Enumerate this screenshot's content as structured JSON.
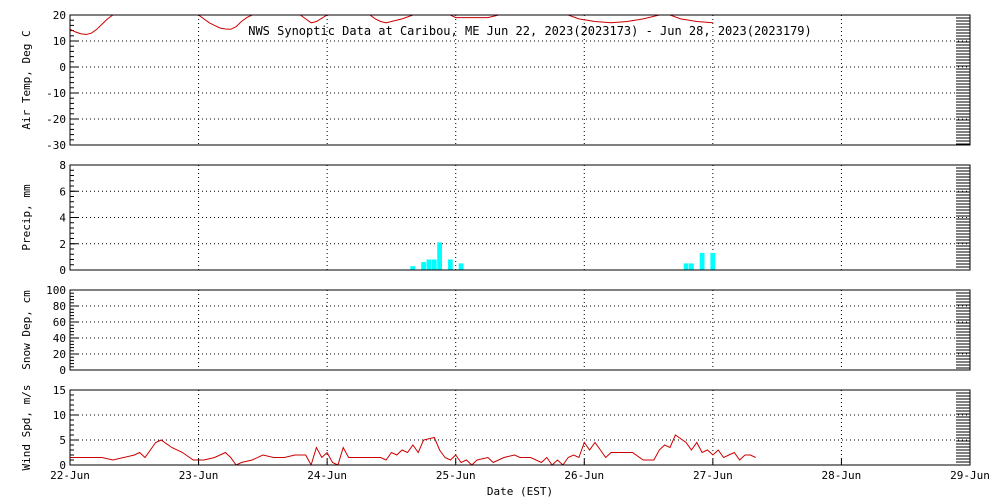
{
  "chart_data": {
    "type": "line",
    "title": "NWS Synoptic Data at Caribou, ME   Jun 22, 2023(2023173) - Jun 28, 2023(2023179)",
    "xlabel": "Date (EST)",
    "x_ticks": [
      "22-Jun",
      "23-Jun",
      "24-Jun",
      "25-Jun",
      "26-Jun",
      "27-Jun",
      "28-Jun",
      "29-Jun"
    ],
    "xlim": [
      "2023-06-22",
      "2023-06-29"
    ],
    "colors": {
      "line": "#cc0000",
      "bar": "#00ffff"
    },
    "panels": [
      {
        "id": "air-temp",
        "type": "line",
        "ylabel": "Air Temp, Deg C",
        "ylim": [
          -30,
          20
        ],
        "y_ticks": [
          "20",
          "10",
          "0",
          "-10",
          "-20",
          "-30"
        ],
        "series": [
          {
            "points": [
              [
                "2023-06-22 00:00",
                14.5
              ],
              [
                "2023-06-22 01:00",
                13.5
              ],
              [
                "2023-06-22 02:00",
                12.8
              ],
              [
                "2023-06-22 03:00",
                12.5
              ],
              [
                "2023-06-22 04:00",
                13.0
              ],
              [
                "2023-06-22 05:00",
                14.5
              ],
              [
                "2023-06-22 06:00",
                16.5
              ],
              [
                "2023-06-22 07:00",
                18.5
              ],
              [
                "2023-06-22 08:00",
                20.0
              ],
              [
                "2023-06-23 00:00",
                20.0
              ],
              [
                "2023-06-23 01:00",
                18.5
              ],
              [
                "2023-06-23 02:00",
                17.0
              ],
              [
                "2023-06-23 03:00",
                16.0
              ],
              [
                "2023-06-23 04:00",
                15.0
              ],
              [
                "2023-06-23 05:00",
                14.6
              ],
              [
                "2023-06-23 06:00",
                14.5
              ],
              [
                "2023-06-23 07:00",
                15.5
              ],
              [
                "2023-06-23 08:00",
                17.5
              ],
              [
                "2023-06-23 09:00",
                19.0
              ],
              [
                "2023-06-23 10:00",
                20.0
              ],
              [
                "2023-06-23 19:00",
                20.0
              ],
              [
                "2023-06-23 20:00",
                18.5
              ],
              [
                "2023-06-23 21:00",
                17.0
              ],
              [
                "2023-06-23 22:00",
                17.5
              ],
              [
                "2023-06-24 00:00",
                20.0
              ],
              [
                "2023-06-24 08:00",
                20.0
              ],
              [
                "2023-06-24 09:00",
                18.5
              ],
              [
                "2023-06-24 10:00",
                17.5
              ],
              [
                "2023-06-24 11:00",
                17.0
              ],
              [
                "2023-06-24 12:00",
                17.5
              ],
              [
                "2023-06-24 14:00",
                18.5
              ],
              [
                "2023-06-24 16:00",
                20.0
              ],
              [
                "2023-06-24 23:00",
                20.0
              ],
              [
                "2023-06-25 00:00",
                19.0
              ],
              [
                "2023-06-25 03:00",
                19.0
              ],
              [
                "2023-06-25 06:00",
                19.0
              ],
              [
                "2023-06-25 08:00",
                20.0
              ],
              [
                "2023-06-25 21:00",
                20.0
              ],
              [
                "2023-06-25 23:00",
                18.5
              ],
              [
                "2023-06-26 02:00",
                17.5
              ],
              [
                "2023-06-26 05:00",
                17.0
              ],
              [
                "2023-06-26 08:00",
                17.5
              ],
              [
                "2023-06-26 11:00",
                18.5
              ],
              [
                "2023-06-26 14:00",
                20.0
              ],
              [
                "2023-06-26 16:00",
                20.0
              ],
              [
                "2023-06-26 18:00",
                18.5
              ],
              [
                "2023-06-26 21:00",
                17.5
              ],
              [
                "2023-06-27 00:00",
                17.0
              ]
            ]
          }
        ]
      },
      {
        "id": "precip",
        "type": "bar",
        "ylabel": "Precip, mm",
        "ylim": [
          0,
          8
        ],
        "y_ticks": [
          "8",
          "6",
          "4",
          "2",
          "0"
        ],
        "bars": [
          [
            "2023-06-24 16:00",
            0.3
          ],
          [
            "2023-06-24 18:00",
            0.6
          ],
          [
            "2023-06-24 19:00",
            0.8
          ],
          [
            "2023-06-24 20:00",
            0.8
          ],
          [
            "2023-06-24 21:00",
            2.1
          ],
          [
            "2023-06-24 23:00",
            0.8
          ],
          [
            "2023-06-25 01:00",
            0.5
          ],
          [
            "2023-06-26 19:00",
            0.5
          ],
          [
            "2023-06-26 20:00",
            0.5
          ],
          [
            "2023-06-26 22:00",
            1.3
          ],
          [
            "2023-06-27 00:00",
            1.3
          ]
        ]
      },
      {
        "id": "snow-depth",
        "type": "line",
        "ylabel": "Snow Dep, cm",
        "ylim": [
          0,
          100
        ],
        "y_ticks": [
          "100",
          "80",
          "60",
          "40",
          "20",
          "0"
        ],
        "series": []
      },
      {
        "id": "wind-speed",
        "type": "line",
        "ylabel": "Wind Spd, m/s",
        "ylim": [
          0,
          15
        ],
        "y_ticks": [
          "15",
          "10",
          "5",
          "0"
        ],
        "series": [
          {
            "points": [
              [
                "2023-06-22 00:00",
                1.5
              ],
              [
                "2023-06-22 03:00",
                1.5
              ],
              [
                "2023-06-22 06:00",
                1.5
              ],
              [
                "2023-06-22 08:00",
                1.0
              ],
              [
                "2023-06-22 10:00",
                1.5
              ],
              [
                "2023-06-22 12:00",
                2.0
              ],
              [
                "2023-06-22 13:00",
                2.5
              ],
              [
                "2023-06-22 14:00",
                1.5
              ],
              [
                "2023-06-22 16:00",
                4.5
              ],
              [
                "2023-06-22 17:00",
                5.0
              ],
              [
                "2023-06-22 19:00",
                3.5
              ],
              [
                "2023-06-22 21:00",
                2.5
              ],
              [
                "2023-06-22 23:00",
                1.0
              ],
              [
                "2023-06-23 01:00",
                1.0
              ],
              [
                "2023-06-23 03:00",
                1.5
              ],
              [
                "2023-06-23 05:00",
                2.5
              ],
              [
                "2023-06-23 06:00",
                1.5
              ],
              [
                "2023-06-23 07:00",
                0.0
              ],
              [
                "2023-06-23 08:00",
                0.5
              ],
              [
                "2023-06-23 10:00",
                1.0
              ],
              [
                "2023-06-23 12:00",
                2.0
              ],
              [
                "2023-06-23 14:00",
                1.5
              ],
              [
                "2023-06-23 16:00",
                1.5
              ],
              [
                "2023-06-23 18:00",
                2.0
              ],
              [
                "2023-06-23 20:00",
                2.0
              ],
              [
                "2023-06-23 21:00",
                0.0
              ],
              [
                "2023-06-23 22:00",
                3.5
              ],
              [
                "2023-06-23 23:00",
                1.5
              ],
              [
                "2023-06-24 00:00",
                2.5
              ],
              [
                "2023-06-24 01:00",
                0.5
              ],
              [
                "2023-06-24 02:00",
                0.0
              ],
              [
                "2023-06-24 03:00",
                3.5
              ],
              [
                "2023-06-24 04:00",
                1.5
              ],
              [
                "2023-06-24 06:00",
                1.5
              ],
              [
                "2023-06-24 08:00",
                1.5
              ],
              [
                "2023-06-24 10:00",
                1.5
              ],
              [
                "2023-06-24 11:00",
                1.0
              ],
              [
                "2023-06-24 12:00",
                2.5
              ],
              [
                "2023-06-24 13:00",
                2.0
              ],
              [
                "2023-06-24 14:00",
                3.0
              ],
              [
                "2023-06-24 15:00",
                2.5
              ],
              [
                "2023-06-24 16:00",
                4.0
              ],
              [
                "2023-06-24 17:00",
                2.5
              ],
              [
                "2023-06-24 18:00",
                5.0
              ],
              [
                "2023-06-24 20:00",
                5.5
              ],
              [
                "2023-06-24 21:00",
                3.0
              ],
              [
                "2023-06-24 22:00",
                1.5
              ],
              [
                "2023-06-24 23:00",
                1.0
              ],
              [
                "2023-06-25 00:00",
                2.0
              ],
              [
                "2023-06-25 01:00",
                0.5
              ],
              [
                "2023-06-25 02:00",
                1.0
              ],
              [
                "2023-06-25 03:00",
                0.0
              ],
              [
                "2023-06-25 04:00",
                1.0
              ],
              [
                "2023-06-25 06:00",
                1.5
              ],
              [
                "2023-06-25 07:00",
                0.5
              ],
              [
                "2023-06-25 09:00",
                1.5
              ],
              [
                "2023-06-25 11:00",
                2.0
              ],
              [
                "2023-06-25 12:00",
                1.5
              ],
              [
                "2023-06-25 14:00",
                1.5
              ],
              [
                "2023-06-25 16:00",
                0.5
              ],
              [
                "2023-06-25 17:00",
                1.5
              ],
              [
                "2023-06-25 18:00",
                0.0
              ],
              [
                "2023-06-25 19:00",
                1.0
              ],
              [
                "2023-06-25 20:00",
                0.0
              ],
              [
                "2023-06-25 21:00",
                1.5
              ],
              [
                "2023-06-25 22:00",
                2.0
              ],
              [
                "2023-06-25 23:00",
                1.5
              ],
              [
                "2023-06-26 00:00",
                4.5
              ],
              [
                "2023-06-26 01:00",
                3.0
              ],
              [
                "2023-06-26 02:00",
                4.5
              ],
              [
                "2023-06-26 03:00",
                3.0
              ],
              [
                "2023-06-26 04:00",
                1.5
              ],
              [
                "2023-06-26 05:00",
                2.5
              ],
              [
                "2023-06-26 07:00",
                2.5
              ],
              [
                "2023-06-26 09:00",
                2.5
              ],
              [
                "2023-06-26 11:00",
                1.0
              ],
              [
                "2023-06-26 13:00",
                1.0
              ],
              [
                "2023-06-26 14:00",
                3.0
              ],
              [
                "2023-06-26 15:00",
                4.0
              ],
              [
                "2023-06-26 16:00",
                3.5
              ],
              [
                "2023-06-26 17:00",
                6.0
              ],
              [
                "2023-06-26 19:00",
                4.5
              ],
              [
                "2023-06-26 20:00",
                3.0
              ],
              [
                "2023-06-26 21:00",
                4.5
              ],
              [
                "2023-06-26 22:00",
                2.5
              ],
              [
                "2023-06-26 23:00",
                3.0
              ],
              [
                "2023-06-27 00:00",
                2.0
              ],
              [
                "2023-06-27 01:00",
                3.0
              ],
              [
                "2023-06-27 02:00",
                1.5
              ],
              [
                "2023-06-27 03:00",
                2.0
              ],
              [
                "2023-06-27 04:00",
                2.5
              ],
              [
                "2023-06-27 05:00",
                1.0
              ],
              [
                "2023-06-27 06:00",
                2.0
              ],
              [
                "2023-06-27 07:00",
                2.0
              ],
              [
                "2023-06-27 08:00",
                1.5
              ]
            ]
          }
        ]
      }
    ]
  }
}
